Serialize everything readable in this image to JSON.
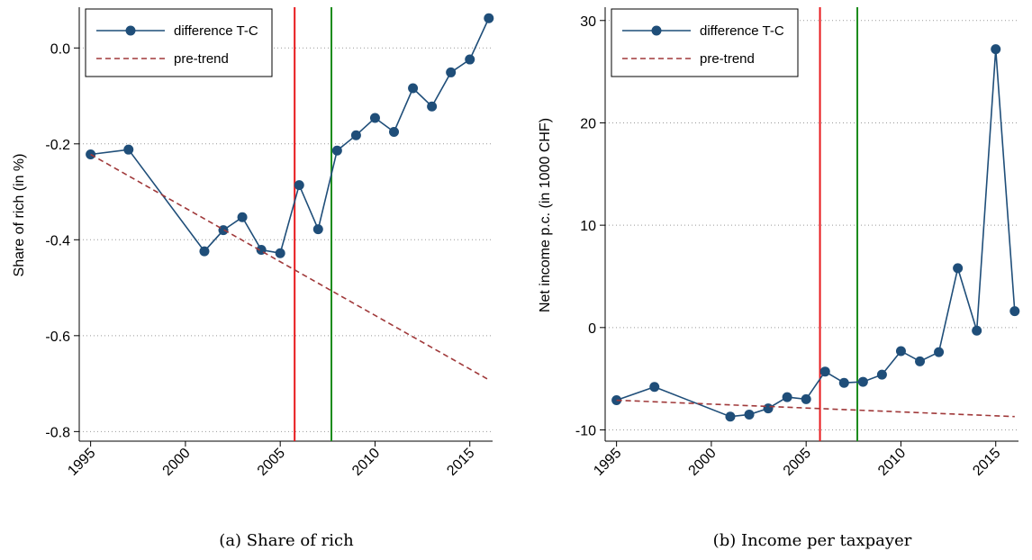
{
  "chart_data": [
    {
      "type": "line",
      "caption": "(a) Share of rich",
      "ylabel": "Share of rich (in %)",
      "xlim": [
        1994.4,
        2016.2
      ],
      "xticks": [
        1995,
        2000,
        2005,
        2010,
        2015
      ],
      "ylim": [
        -0.82,
        0.085
      ],
      "yticks": [
        {
          "value": 0,
          "label": "0.0"
        },
        -0.2,
        -0.4,
        -0.6,
        -0.8
      ],
      "grid": true,
      "legend": "upper left",
      "x": [
        1995,
        1997,
        2001,
        2002,
        2003,
        2004,
        2005,
        2006,
        2007,
        2008,
        2009,
        2010,
        2011,
        2012,
        2013,
        2014,
        2015,
        2016
      ],
      "series": [
        {
          "name": "difference T-C",
          "color": "#1f4e79",
          "values": [
            -0.222,
            -0.212,
            -0.424,
            -0.38,
            -0.353,
            -0.421,
            -0.428,
            -0.286,
            -0.378,
            -0.214,
            -0.182,
            -0.146,
            -0.175,
            -0.084,
            -0.122,
            -0.051,
            -0.024,
            0.062
          ]
        },
        {
          "name": "pre-trend",
          "color": "#a0393a",
          "dashed": true,
          "x": [
            1995,
            2016
          ],
          "values": [
            -0.222,
            -0.692
          ]
        }
      ],
      "vlines": [
        {
          "value": 2005.76,
          "color": "#e8191c"
        },
        {
          "value": 2007.7,
          "color": "#1a8a1a"
        }
      ]
    },
    {
      "type": "line",
      "caption": "(b) Income per taxpayer",
      "ylabel": "Net income p.c. (in 1000 CHF)",
      "xlim": [
        1994.4,
        2016.2
      ],
      "xticks": [
        1995,
        2000,
        2005,
        2010,
        2015
      ],
      "ylim": [
        -11.1,
        31.3
      ],
      "yticks": [
        30,
        20,
        10,
        0,
        -10
      ],
      "grid": true,
      "legend": "upper left",
      "x": [
        1995,
        1997,
        2001,
        2002,
        2003,
        2004,
        2005,
        2006,
        2007,
        2008,
        2009,
        2010,
        2011,
        2012,
        2013,
        2014,
        2015,
        2016
      ],
      "series": [
        {
          "name": "difference T-C",
          "color": "#1f4e79",
          "values": [
            -7.1,
            -5.8,
            -8.7,
            -8.5,
            -7.9,
            -6.8,
            -7.0,
            -4.3,
            -5.4,
            -5.3,
            -4.6,
            -2.3,
            -3.3,
            -2.4,
            5.8,
            -0.3,
            27.2,
            1.6
          ]
        },
        {
          "name": "pre-trend",
          "color": "#a0393a",
          "dashed": true,
          "x": [
            1995,
            2016
          ],
          "values": [
            -7.1,
            -8.7
          ]
        }
      ],
      "vlines": [
        {
          "value": 2005.73,
          "color": "#e8191c"
        },
        {
          "value": 2007.7,
          "color": "#1a8a1a"
        }
      ]
    }
  ]
}
